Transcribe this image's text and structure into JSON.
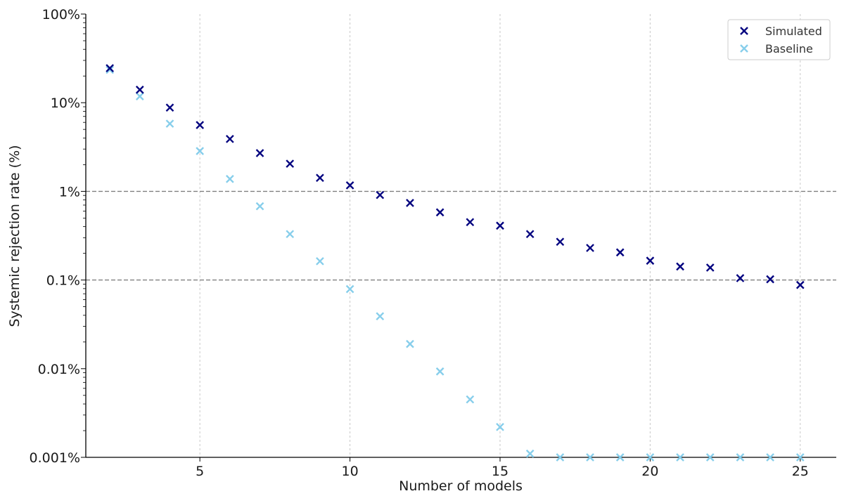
{
  "chart_data": {
    "type": "scatter",
    "xlabel": "Number of models",
    "ylabel": "Systemic rejection rate (%)",
    "xlim": [
      1.2,
      26.2
    ],
    "ylim": [
      0.001,
      100
    ],
    "yscale": "log",
    "x_ticks": [
      5,
      10,
      15,
      20,
      25
    ],
    "x_tick_labels": [
      "5",
      "10",
      "15",
      "20",
      "25"
    ],
    "y_ticks": [
      0.001,
      0.01,
      0.1,
      1,
      10,
      100
    ],
    "y_tick_labels": [
      "0.001%",
      "0.01%",
      "0.1%",
      "1%",
      "10%",
      "100%"
    ],
    "reference_lines": [
      1,
      0.1
    ],
    "grid": "vertical dotted",
    "legend_position": "top-right",
    "marker": "x",
    "series": [
      {
        "name": "Simulated",
        "color": "#00007f",
        "x": [
          2,
          3,
          4,
          5,
          6,
          7,
          8,
          9,
          10,
          11,
          12,
          13,
          14,
          15,
          16,
          17,
          18,
          19,
          20,
          21,
          22,
          23,
          24,
          25
        ],
        "y": [
          24.5,
          14,
          8.8,
          5.6,
          3.9,
          2.7,
          2.05,
          1.42,
          1.17,
          0.91,
          0.74,
          0.58,
          0.45,
          0.41,
          0.33,
          0.27,
          0.23,
          0.205,
          0.165,
          0.142,
          0.138,
          0.105,
          0.102,
          0.088
        ]
      },
      {
        "name": "Baseline",
        "color": "#87ceeb",
        "x": [
          2,
          3,
          4,
          5,
          6,
          7,
          8,
          9,
          10,
          11,
          12,
          13,
          14,
          15,
          16,
          17,
          18,
          19,
          20,
          21,
          22,
          23,
          24,
          25
        ],
        "y": [
          23.5,
          11.8,
          5.8,
          2.85,
          1.38,
          0.68,
          0.33,
          0.163,
          0.079,
          0.039,
          0.019,
          0.0093,
          0.0045,
          0.0022,
          0.0011,
          0.001,
          0.001,
          0.001,
          0.001,
          0.001,
          0.001,
          0.001,
          0.001,
          0.001
        ]
      }
    ]
  }
}
